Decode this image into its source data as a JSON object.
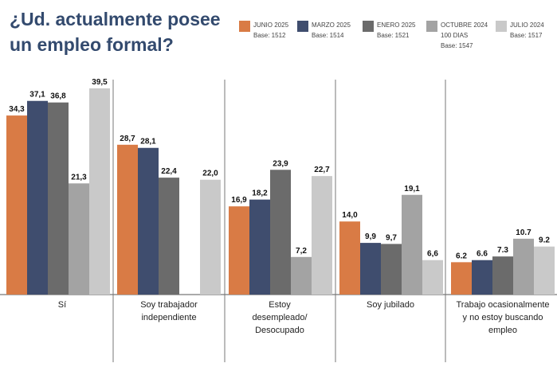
{
  "title_lines": [
    "¿Ud. actualmente posee",
    "un empleo formal?"
  ],
  "chart_data": {
    "type": "bar",
    "title": "¿Ud. actualmente posee un empleo formal?",
    "categories": [
      [
        "Sí"
      ],
      [
        "Soy trabajador",
        "independiente"
      ],
      [
        "Estoy",
        "desempleado/",
        "Desocupado"
      ],
      [
        "Soy jubilado"
      ],
      [
        "Trabajo ocasionalmente",
        "y no estoy buscando",
        "empleo"
      ]
    ],
    "series": [
      {
        "name": "JUNIO 2025",
        "base": "Base: 1512",
        "color": "#d97b45",
        "values": [
          34.3,
          28.7,
          16.9,
          14.0,
          6.2
        ],
        "labels": [
          "34,3",
          "28,7",
          "16,9",
          "14,0",
          "6.2"
        ]
      },
      {
        "name": "MARZO 2025",
        "base": "Base: 1514",
        "color": "#3f4d6e",
        "values": [
          37.1,
          28.1,
          18.2,
          9.9,
          6.6
        ],
        "labels": [
          "37,1",
          "28,1",
          "18,2",
          "9,9",
          "6.6"
        ]
      },
      {
        "name": "ENERO 2025",
        "base": "Base: 1521",
        "color": "#6b6b6b",
        "values": [
          36.8,
          22.4,
          23.9,
          9.7,
          7.3
        ],
        "labels": [
          "36,8",
          "22,4",
          "23,9",
          "9,7",
          "7.3"
        ]
      },
      {
        "name": "OCTUBRE 2024",
        "base": "100 DIAS",
        "base2": "Base: 1547",
        "color": "#a3a3a3",
        "values": [
          21.3,
          null,
          7.2,
          19.1,
          10.7
        ],
        "labels": [
          "21,3",
          "",
          "7,2",
          "19,1",
          "10.7"
        ]
      },
      {
        "name": "JULIO 2024",
        "base": "Base: 1517",
        "color": "#c9c9c9",
        "values": [
          39.5,
          22.0,
          22.7,
          6.6,
          9.2
        ],
        "labels": [
          "39,5",
          "22,0",
          "22,7",
          "6,6",
          "9.2"
        ]
      }
    ],
    "ylim": [
      0,
      39.5
    ],
    "grid": false,
    "legend": "top-right"
  }
}
